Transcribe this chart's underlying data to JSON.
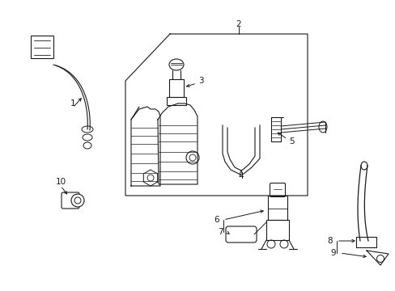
{
  "bg_color": "#ffffff",
  "line_color": "#1a1a1a",
  "fig_width": 4.89,
  "fig_height": 3.6,
  "dpi": 100,
  "lw_main": 0.8,
  "lw_thick": 1.5,
  "fontsize": 7.5
}
